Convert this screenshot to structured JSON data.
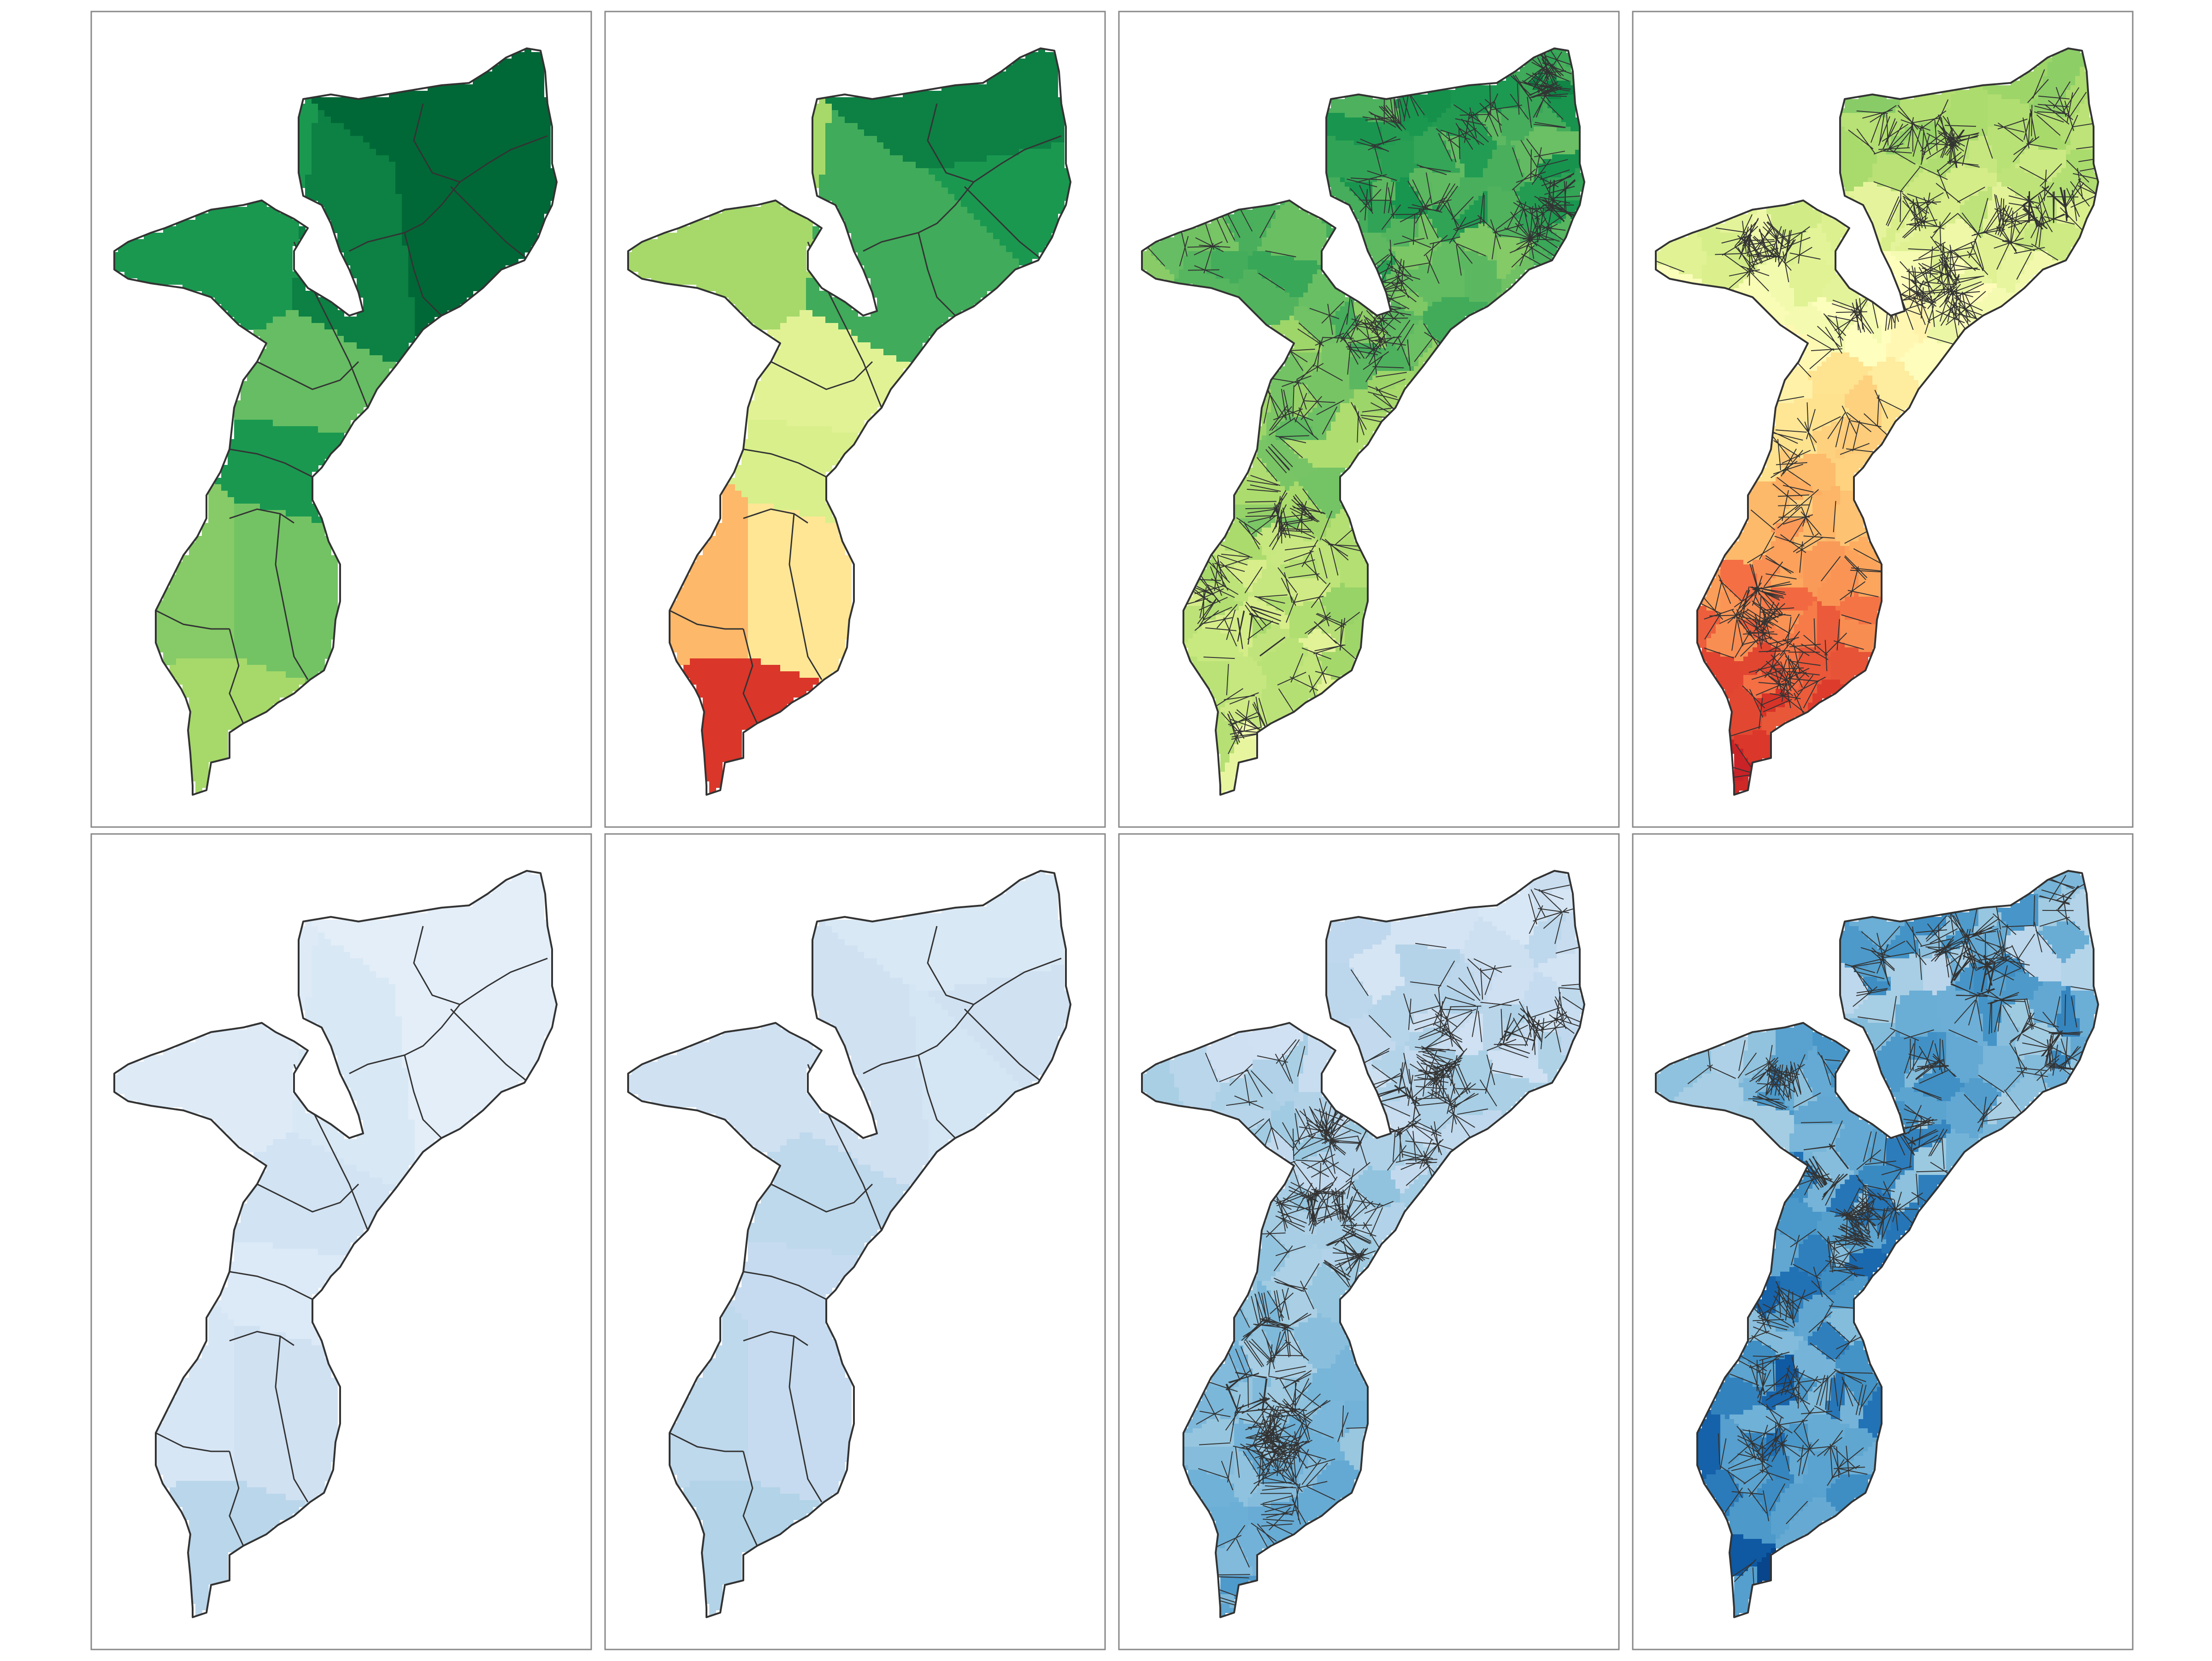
{
  "figure": {
    "description_shown_text": "",
    "ramps": {
      "rdylgn": [
        "#a50026",
        "#d73027",
        "#f46d43",
        "#fdae61",
        "#fee08b",
        "#ffffbf",
        "#d9ef8b",
        "#a6d96a",
        "#66bd63",
        "#1a9850",
        "#006837"
      ],
      "blues": [
        "#f7fbff",
        "#deebf7",
        "#c6dbef",
        "#9ecae1",
        "#6baed6",
        "#4292c6",
        "#2171b5",
        "#08519c",
        "#08306b"
      ]
    },
    "border_color": "#333333",
    "panel_border_color": "#888888"
  },
  "panels": [
    {
      "id": "p1",
      "ramp": "rdylgn",
      "level": "province",
      "values": [
        10,
        10,
        10,
        9.5,
        9,
        8,
        9,
        7.8,
        7.5,
        7
      ]
    },
    {
      "id": "p2",
      "ramp": "rdylgn",
      "level": "province",
      "values": [
        9.5,
        9,
        8.5,
        8.5,
        7,
        5.8,
        6,
        4.2,
        3.2,
        1.1
      ]
    },
    {
      "id": "p3",
      "ramp": "rdylgn",
      "level": "district",
      "range": [
        5.2,
        10
      ]
    },
    {
      "id": "p4",
      "ramp": "rdylgn",
      "level": "district",
      "range": [
        0,
        9
      ]
    },
    {
      "id": "p5",
      "ramp": "blues",
      "level": "province",
      "values": [
        0.8,
        0.8,
        0.8,
        1.2,
        1.0,
        1.5,
        1.1,
        1.6,
        1.3,
        2.3
      ]
    },
    {
      "id": "p6",
      "ramp": "blues",
      "level": "province",
      "values": [
        1.2,
        1.6,
        1.4,
        1.6,
        1.6,
        2.2,
        2.0,
        2.0,
        2.2,
        2.5
      ]
    },
    {
      "id": "p7",
      "ramp": "blues",
      "level": "district",
      "range": [
        0,
        4.6
      ]
    },
    {
      "id": "p8",
      "ramp": "blues",
      "level": "district",
      "range": [
        0,
        8
      ]
    }
  ]
}
